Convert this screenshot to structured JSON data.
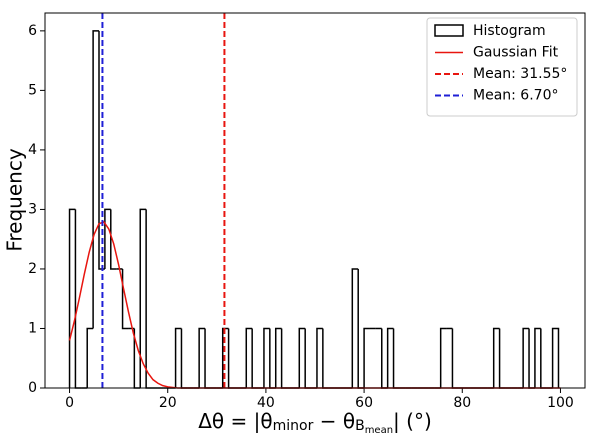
{
  "chart_data": {
    "type": "histogram",
    "xlabel": {
      "prefix": "Δθ = |θ",
      "sub1": "minor",
      "mid": " − θ",
      "sub2": "B",
      "subsub": "mean",
      "suffix": "| (°)"
    },
    "ylabel": "Frequency",
    "histogram": {
      "name": "Histogram",
      "color": "#000000"
    },
    "bins": [
      0,
      1.2,
      2.4,
      3.6,
      4.8,
      6,
      7.2,
      8.4,
      9.6,
      10.8,
      12,
      13.2,
      14.4,
      15.6,
      16.8,
      18,
      19.2,
      20.4,
      21.6,
      22.8,
      24,
      25.2,
      26.4,
      27.6,
      28.8,
      30,
      31.2,
      32.4,
      33.6,
      34.8,
      36,
      37.2,
      38.4,
      39.6,
      40.8,
      42,
      43.2,
      44.4,
      45.6,
      46.8,
      48,
      49.2,
      50.4,
      51.6,
      52.8,
      54,
      55.2,
      56.4,
      57.6,
      58.8,
      60,
      61.2,
      62.4,
      63.6,
      64.8,
      66,
      67.2,
      68.4,
      69.6,
      70.8,
      72,
      73.2,
      74.4,
      75.6,
      76.8,
      78,
      79.2,
      80.4,
      81.6,
      82.8,
      84,
      85.2,
      86.4,
      87.6,
      88.8,
      90,
      91.2,
      92.4,
      93.6,
      94.8,
      96,
      97.2,
      98.4,
      99.6
    ],
    "counts": [
      3,
      0,
      0,
      1,
      6,
      2,
      3,
      2,
      2,
      1,
      1,
      0,
      3,
      0,
      0,
      0,
      0,
      0,
      1,
      0,
      0,
      0,
      1,
      0,
      0,
      0,
      1,
      0,
      0,
      0,
      1,
      0,
      0,
      1,
      0,
      1,
      0,
      0,
      0,
      1,
      0,
      0,
      1,
      0,
      0,
      0,
      0,
      0,
      2,
      0,
      1,
      1,
      1,
      0,
      1,
      0,
      0,
      0,
      0,
      0,
      0,
      0,
      0,
      1,
      1,
      0,
      0,
      0,
      0,
      0,
      0,
      0,
      1,
      0,
      0,
      0,
      0,
      1,
      0,
      1,
      0,
      0,
      1
    ],
    "fit": {
      "name": "Gaussian Fit",
      "color": "#e8150f",
      "x": [
        0,
        1,
        2,
        3,
        4,
        5,
        6,
        7,
        8,
        9,
        10,
        11,
        12,
        13,
        14,
        15,
        16,
        17,
        18,
        19,
        20,
        22,
        30,
        40,
        50,
        60,
        70,
        80,
        90,
        100
      ],
      "values": [
        0.8,
        1.13,
        1.51,
        1.91,
        2.28,
        2.58,
        2.76,
        2.79,
        2.67,
        2.42,
        2.07,
        1.67,
        1.28,
        0.92,
        0.63,
        0.41,
        0.25,
        0.14,
        0.08,
        0.04,
        0.02,
        0,
        0,
        0,
        0,
        0,
        0,
        0,
        0,
        0
      ]
    },
    "vlines": [
      {
        "name": "Mean: 31.55°",
        "value": 31.55,
        "color": "#e8150f"
      },
      {
        "name": "Mean: 6.70°",
        "value": 6.7,
        "color": "#1f1fd6"
      }
    ],
    "xlim": [
      -5,
      105
    ],
    "ylim": [
      0,
      6.3
    ],
    "xticks": [
      0,
      20,
      40,
      60,
      80,
      100
    ],
    "yticks": [
      0,
      1,
      2,
      3,
      4,
      5,
      6
    ],
    "legend": "upper right"
  }
}
